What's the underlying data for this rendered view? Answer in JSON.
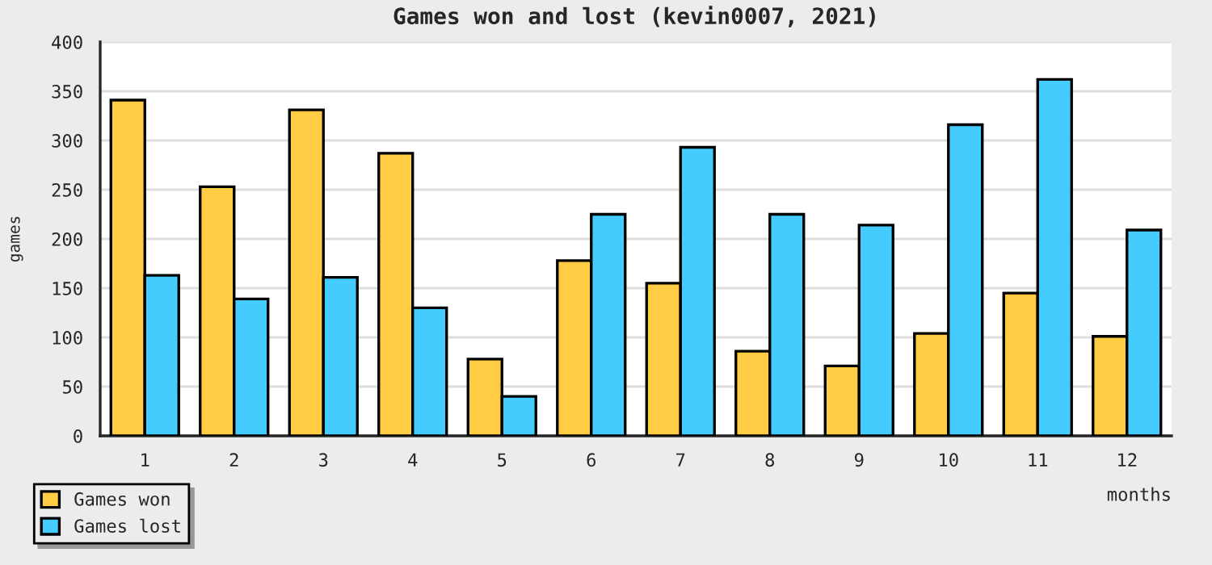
{
  "chart_data": {
    "type": "bar",
    "title": "Games won and lost (kevin0007, 2021)",
    "xlabel": "months",
    "ylabel": "games",
    "categories": [
      "1",
      "2",
      "3",
      "4",
      "5",
      "6",
      "7",
      "8",
      "9",
      "10",
      "11",
      "12"
    ],
    "series": [
      {
        "name": "Games won",
        "color": "#ffcc44",
        "values": [
          341,
          253,
          331,
          287,
          78,
          178,
          155,
          86,
          71,
          104,
          145,
          101
        ]
      },
      {
        "name": "Games lost",
        "color": "#44ccff",
        "values": [
          163,
          139,
          161,
          130,
          40,
          225,
          293,
          225,
          214,
          316,
          362,
          209
        ]
      }
    ],
    "ylim": [
      0,
      400
    ],
    "yticks": [
      0,
      50,
      100,
      150,
      200,
      250,
      300,
      350,
      400
    ],
    "grid": "y",
    "legend": "bottom left"
  }
}
